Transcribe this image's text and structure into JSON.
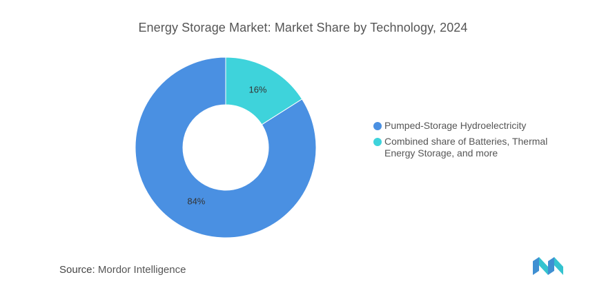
{
  "chart_data": {
    "type": "pie",
    "title": "Energy Storage Market: Market Share by Technology, 2024",
    "categories": [
      "Pumped-Storage Hydroelectricity",
      "Combined share of Batteries, Thermal Energy Storage, and more"
    ],
    "values": [
      84,
      16
    ],
    "value_labels": [
      "84%",
      "16%"
    ],
    "colors": [
      "#4a90e2",
      "#3ed3db"
    ],
    "donut": true,
    "legend_position": "right"
  },
  "source": {
    "label": "Source:",
    "value": "Mordor Intelligence"
  },
  "colors": {
    "title": "#555555",
    "logo": "#5b9bd5"
  }
}
